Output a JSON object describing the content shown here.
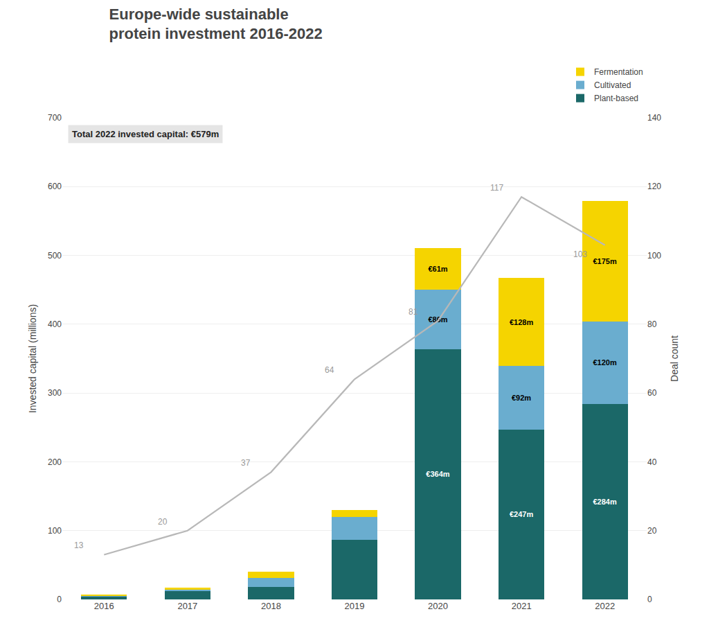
{
  "chart_data": {
    "type": "bar",
    "title": "Europe-wide sustainable\nprotein investment 2016-2022",
    "categories": [
      "2016",
      "2017",
      "2018",
      "2019",
      "2020",
      "2021",
      "2022"
    ],
    "stacked": true,
    "series": [
      {
        "name": "Plant-based",
        "color": "#1b6868",
        "values": [
          5,
          12,
          18,
          87,
          364,
          247,
          284
        ],
        "data_labels": true,
        "value_labels": [
          null,
          null,
          null,
          null,
          "€364m",
          "€247m",
          "€284m"
        ]
      },
      {
        "name": "Cultivated",
        "color": "#6aadcf",
        "values": [
          0.5,
          3,
          13,
          33,
          86,
          92,
          120
        ],
        "data_labels": true,
        "value_labels": [
          null,
          null,
          null,
          null,
          "€86m",
          "€92m",
          "€120m"
        ]
      },
      {
        "name": "Fermentation",
        "color": "#f5d400",
        "values": [
          1,
          2,
          9,
          10,
          61,
          128,
          175
        ],
        "data_labels": true,
        "value_labels": [
          null,
          null,
          null,
          null,
          "€61m",
          "€128m",
          "€175m"
        ]
      },
      {
        "type": "line",
        "axis": "y2",
        "color": "#b8b8b8",
        "values": [
          13,
          20,
          37,
          64,
          81,
          117,
          103
        ],
        "data_labels": true
      }
    ],
    "ylabel": "Invested capital (millions)",
    "y2label": "Deal count",
    "ylim": [
      0,
      700
    ],
    "yticks": [
      0,
      100,
      200,
      300,
      400,
      500,
      600,
      700
    ],
    "y2lim": [
      0,
      140
    ],
    "y2ticks": [
      0,
      20,
      40,
      60,
      80,
      100,
      120,
      140
    ],
    "grid": true,
    "legend": "top right",
    "annotation": "Total 2022 invested capital: €579m"
  }
}
